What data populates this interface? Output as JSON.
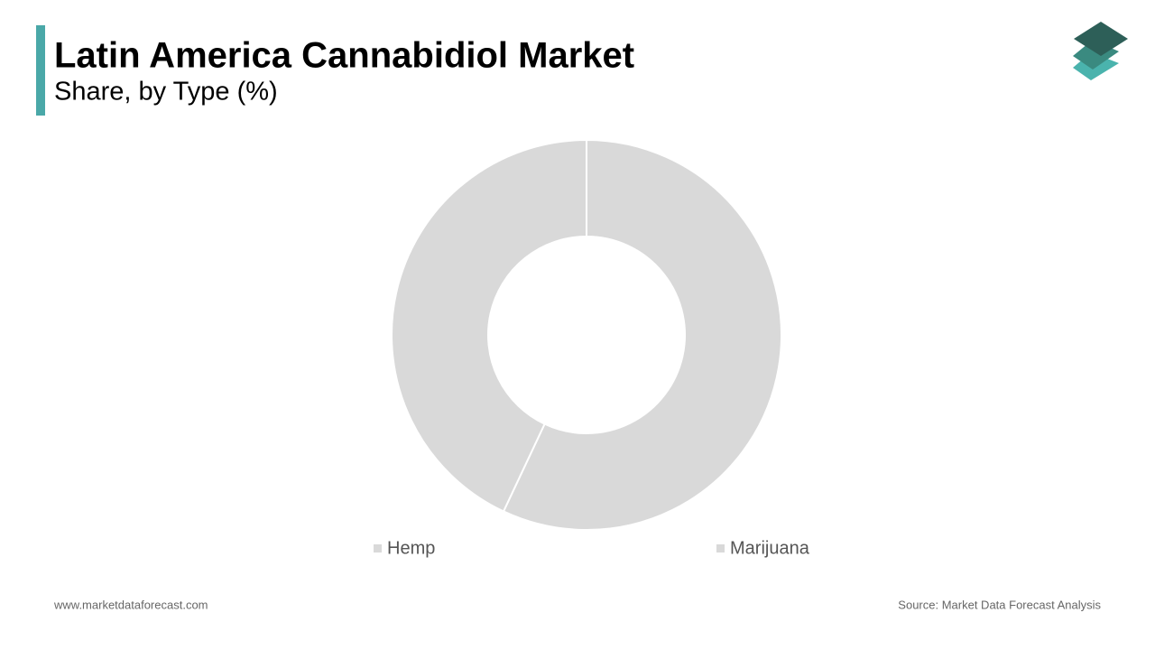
{
  "chart_data": {
    "type": "pie",
    "title": "Latin America Cannabidiol Market",
    "subtitle": "Share, by Type (%)",
    "categories": [
      "Hemp",
      "Marijuana"
    ],
    "values": [
      57,
      43
    ],
    "colors": [
      "#d9d9d9",
      "#d9d9d9"
    ],
    "donut": true
  },
  "footer": {
    "website": "www.marketdataforecast.com",
    "source": "Source: Market Data Forecast Analysis"
  }
}
